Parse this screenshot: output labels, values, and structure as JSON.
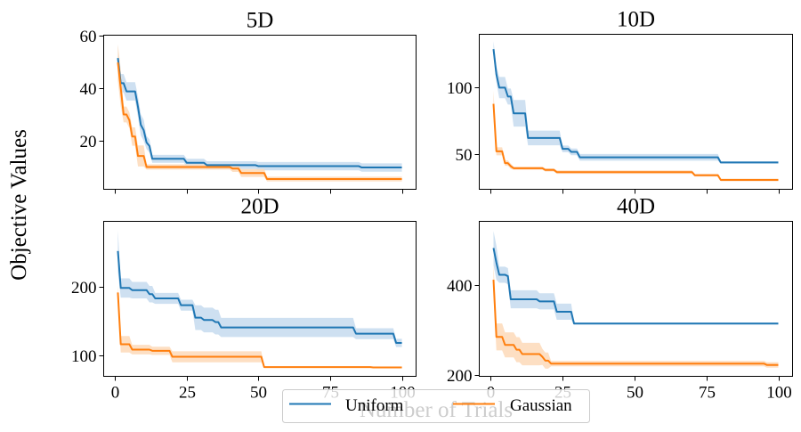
{
  "chart_data": {
    "type": "line",
    "layout": "2x2 grid of subplots with shared x axis",
    "ylabel": "Objective Values",
    "xlabel": "Number of Trials",
    "legend": {
      "placement": "bottom-center",
      "entries": [
        {
          "name": "Uniform",
          "color": "#1f77b4"
        },
        {
          "name": "Gaussian",
          "color": "#ff7f0e"
        }
      ]
    },
    "band_colors": {
      "Uniform": "#c6dbef",
      "Gaussian": "#fdd9b9"
    },
    "panels": [
      {
        "title": "5D",
        "xlim": [
          -3.95,
          104.95
        ],
        "ylim": [
          1.5,
          60.2
        ],
        "xticks": [
          0,
          25,
          50,
          75,
          100
        ],
        "xtick_labels_shown": false,
        "yticks": [
          20,
          40,
          60
        ],
        "ytick_labels": [
          "20",
          "40",
          "60"
        ],
        "series": [
          {
            "name": "Uniform",
            "steps": [
              [
                1,
                51.5
              ],
              [
                2,
                41.9
              ],
              [
                4,
                38.8
              ],
              [
                8,
                32.9
              ],
              [
                9,
                26.0
              ],
              [
                10,
                24.0
              ],
              [
                11,
                19.3
              ],
              [
                12,
                18.0
              ],
              [
                13,
                13.1
              ],
              [
                25,
                11.6
              ],
              [
                32,
                10.7
              ],
              [
                50,
                10.3
              ],
              [
                86,
                9.8
              ]
            ],
            "band": [
              [
                1,
                4.5
              ],
              [
                2,
                3.5
              ],
              [
                4,
                3.5
              ],
              [
                8,
                4.0
              ],
              [
                11,
                2.5
              ],
              [
                13,
                1.5
              ],
              [
                25,
                1.5
              ],
              [
                50,
                1.6
              ],
              [
                100,
                1.6
              ]
            ]
          },
          {
            "name": "Gaussian",
            "steps": [
              [
                1,
                49.8
              ],
              [
                2,
                40.0
              ],
              [
                3,
                30.0
              ],
              [
                5,
                27.8
              ],
              [
                6,
                21.6
              ],
              [
                8,
                14.2
              ],
              [
                11,
                10.0
              ],
              [
                41,
                9.4
              ],
              [
                44,
                7.7
              ],
              [
                53,
                5.4
              ]
            ],
            "band": [
              [
                1,
                7.0
              ],
              [
                3,
                3.0
              ],
              [
                6,
                3.5
              ],
              [
                8,
                4.0
              ],
              [
                11,
                1.0
              ],
              [
                41,
                1.3
              ],
              [
                44,
                1.5
              ],
              [
                53,
                0.9
              ],
              [
                100,
                0.9
              ]
            ]
          }
        ]
      },
      {
        "title": "10D",
        "xlim": [
          -3.95,
          104.95
        ],
        "ylim": [
          23.7,
          140.0
        ],
        "xticks": [
          0,
          25,
          50,
          75,
          100
        ],
        "xtick_labels_shown": false,
        "yticks": [
          50,
          100
        ],
        "ytick_labels": [
          "50",
          "100"
        ],
        "series": [
          {
            "name": "Uniform",
            "steps": [
              [
                1,
                128.9
              ],
              [
                2,
                110.0
              ],
              [
                3,
                100.0
              ],
              [
                6,
                93.3
              ],
              [
                8,
                80.7
              ],
              [
                13,
                62.2
              ],
              [
                25,
                54.0
              ],
              [
                28,
                51.8
              ],
              [
                31,
                47.7
              ],
              [
                80,
                43.8
              ]
            ],
            "band": [
              [
                1,
                6.0
              ],
              [
                3,
                8.0
              ],
              [
                6,
                6.0
              ],
              [
                8,
                10.0
              ],
              [
                13,
                5.5
              ],
              [
                25,
                2.5
              ],
              [
                31,
                2.5
              ],
              [
                80,
                0.8
              ],
              [
                100,
                0.8
              ]
            ]
          },
          {
            "name": "Gaussian",
            "steps": [
              [
                1,
                87.8
              ],
              [
                2,
                52.2
              ],
              [
                5,
                43.3
              ],
              [
                7,
                41.0
              ],
              [
                8,
                39.5
              ],
              [
                19,
                38.2
              ],
              [
                23,
                36.6
              ],
              [
                71,
                34.2
              ],
              [
                80,
                30.7
              ]
            ],
            "band": [
              [
                1,
                10.0
              ],
              [
                2,
                3.0
              ],
              [
                5,
                2.0
              ],
              [
                8,
                1.2
              ],
              [
                23,
                1.3
              ],
              [
                71,
                1.0
              ],
              [
                80,
                1.0
              ],
              [
                100,
                1.0
              ]
            ]
          }
        ]
      },
      {
        "title": "20D",
        "xlim": [
          -3.95,
          104.95
        ],
        "ylim": [
          69.3,
          295.0
        ],
        "xticks": [
          0,
          25,
          50,
          75,
          100
        ],
        "xtick_labels": [
          "0",
          "25",
          "50",
          "75",
          "100"
        ],
        "yticks": [
          100,
          200
        ],
        "ytick_labels": [
          "100",
          "200"
        ],
        "series": [
          {
            "name": "Uniform",
            "steps": [
              [
                1,
                251.8
              ],
              [
                2,
                198.0
              ],
              [
                6,
                194.8
              ],
              [
                12,
                189.0
              ],
              [
                14,
                182.8
              ],
              [
                23,
                172.9
              ],
              [
                28,
                154.8
              ],
              [
                31,
                151.3
              ],
              [
                35,
                148.3
              ],
              [
                37,
                140.5
              ],
              [
                84,
                131.4
              ],
              [
                98,
                118.0
              ]
            ],
            "band": [
              [
                1,
                30.0
              ],
              [
                2,
                14.0
              ],
              [
                6,
                12.0
              ],
              [
                14,
                8.0
              ],
              [
                23,
                8.0
              ],
              [
                28,
                18.0
              ],
              [
                37,
                14.0
              ],
              [
                84,
                8.0
              ],
              [
                98,
                6.0
              ],
              [
                100,
                6.0
              ]
            ]
          },
          {
            "name": "Gaussian",
            "steps": [
              [
                1,
                191.4
              ],
              [
                2,
                116.0
              ],
              [
                6,
                108.2
              ],
              [
                13,
                106.5
              ],
              [
                20,
                97.8
              ],
              [
                52,
                82.8
              ],
              [
                90,
                82.3
              ]
            ],
            "band": [
              [
                1,
                10.0
              ],
              [
                2,
                12.0
              ],
              [
                6,
                7.0
              ],
              [
                13,
                6.0
              ],
              [
                20,
                8.0
              ],
              [
                52,
                1.0
              ],
              [
                100,
                1.0
              ]
            ]
          }
        ]
      },
      {
        "title": "40D",
        "xlim": [
          -3.95,
          104.95
        ],
        "ylim": [
          196.6,
          542.0
        ],
        "xticks": [
          0,
          25,
          50,
          75,
          100
        ],
        "xtick_labels": [
          "0",
          "25",
          "50",
          "75",
          "100"
        ],
        "yticks": [
          200,
          400
        ],
        "ytick_labels": [
          "200",
          "400"
        ],
        "series": [
          {
            "name": "Uniform",
            "steps": [
              [
                1,
                482.5
              ],
              [
                2,
                450.0
              ],
              [
                3,
                423.0
              ],
              [
                6,
                419.8
              ],
              [
                7,
                368.3
              ],
              [
                17,
                363.7
              ],
              [
                23,
                340.6
              ],
              [
                29,
                314.2
              ]
            ],
            "band": [
              [
                1,
                38.0
              ],
              [
                3,
                18.0
              ],
              [
                6,
                18.0
              ],
              [
                7,
                20.0
              ],
              [
                17,
                18.0
              ],
              [
                23,
                18.0
              ],
              [
                29,
                2.0
              ],
              [
                100,
                2.0
              ]
            ]
          },
          {
            "name": "Gaussian",
            "steps": [
              [
                1,
                411.9
              ],
              [
                2,
                284.5
              ],
              [
                5,
                266.7
              ],
              [
                9,
                256.0
              ],
              [
                11,
                246.2
              ],
              [
                18,
                240.0
              ],
              [
                19,
                231.7
              ],
              [
                21,
                225.0
              ],
              [
                96,
                222.0
              ]
            ],
            "band": [
              [
                1,
                35.0
              ],
              [
                2,
                30.0
              ],
              [
                5,
                28.0
              ],
              [
                11,
                25.0
              ],
              [
                18,
                18.0
              ],
              [
                21,
                6.0
              ],
              [
                100,
                6.0
              ]
            ]
          }
        ]
      }
    ]
  }
}
